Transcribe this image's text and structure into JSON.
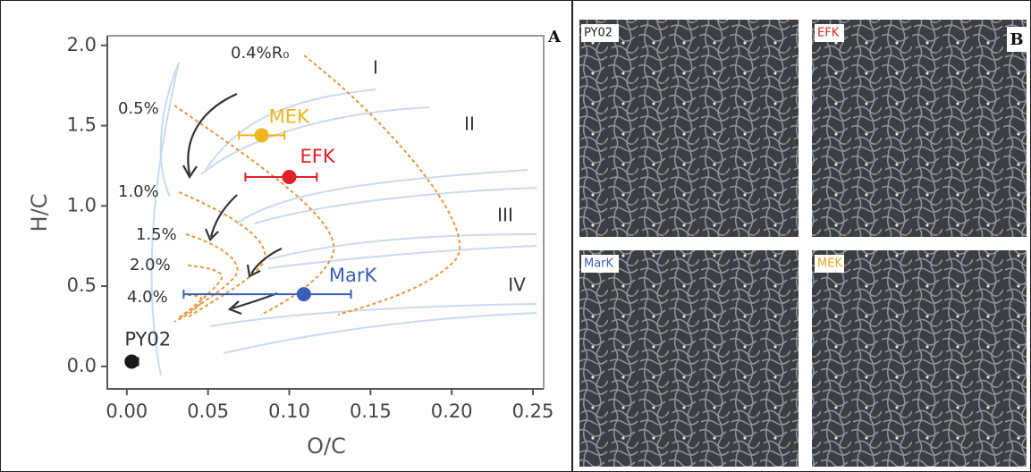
{
  "chart_data": {
    "type": "scatter",
    "panel_label": "A",
    "xlabel": "O/C",
    "ylabel": "H/C",
    "xlim": [
      -0.012,
      0.2566
    ],
    "ylim": [
      -0.14,
      2.06
    ],
    "xticks": [
      {
        "value": 0,
        "label": "0.00"
      },
      0.05,
      {
        "value": 0.1,
        "label": "0.10"
      },
      0.15,
      {
        "value": 0.2,
        "label": "0.20"
      },
      0.25
    ],
    "yticks": [
      {
        "value": 0,
        "label": "0.0"
      },
      0.5,
      {
        "value": 1,
        "label": "1.0"
      },
      1.5,
      {
        "value": 2,
        "label": "2.0"
      }
    ],
    "series": [
      {
        "name": "PY02",
        "color": "#1a1a1a",
        "x": [
          0.003
        ],
        "values": [
          0.03
        ],
        "xerr": [
          [
            0,
            0.004
          ]
        ]
      },
      {
        "name": "MEK",
        "color": "#f0b41c",
        "x": [
          0.083
        ],
        "values": [
          1.44
        ],
        "xerr": [
          [
            0.014,
            0.014
          ]
        ]
      },
      {
        "name": "EFK",
        "color": "#e0202a",
        "x": [
          0.1
        ],
        "values": [
          1.18
        ],
        "xerr": [
          [
            0.027,
            0.017
          ]
        ]
      },
      {
        "name": "MarK",
        "color": "#3a5fb8",
        "x": [
          0.109
        ],
        "values": [
          0.45
        ],
        "xerr": [
          [
            0.074,
            0.029
          ]
        ]
      }
    ],
    "annotations": [
      "0.4%R₀",
      "0.5%",
      "1.0%",
      "1.5%",
      "2.0%",
      "4.0%",
      "I",
      "II",
      "III",
      "IV"
    ]
  },
  "panel_b": {
    "label": "B",
    "images": [
      {
        "label": "PY02",
        "color": "#222222"
      },
      {
        "label": "EFK",
        "color": "#d02a2a"
      },
      {
        "label": "MarK",
        "color": "#3a5fb8"
      },
      {
        "label": "MEK",
        "color": "#e0a81a"
      }
    ]
  }
}
